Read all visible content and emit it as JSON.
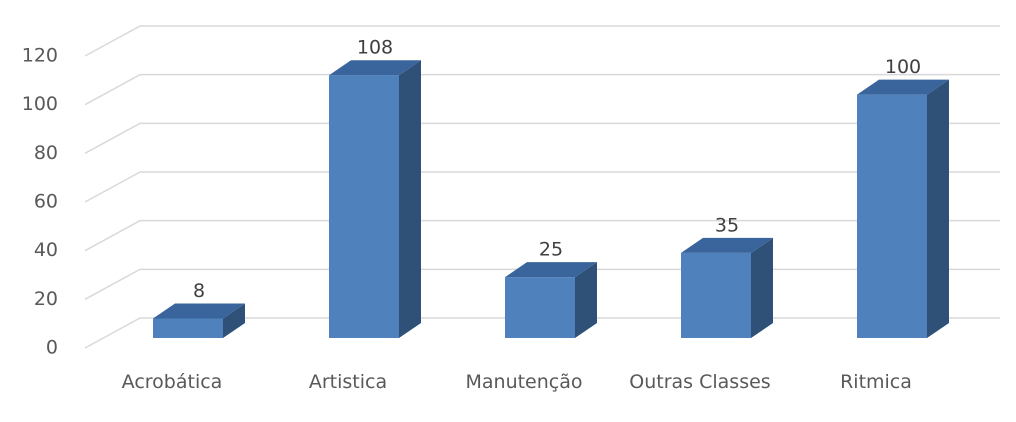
{
  "chart_data": {
    "type": "bar3d",
    "categories": [
      "Acrobática",
      "Artistica",
      "Manutenção",
      "Outras Classes",
      "Ritmica"
    ],
    "values": [
      8,
      108,
      25,
      35,
      100
    ],
    "color": "#4f81bd",
    "ylim": [
      0,
      120
    ],
    "yticks": [
      0,
      20,
      40,
      60,
      80,
      100,
      120
    ],
    "grid": true
  }
}
